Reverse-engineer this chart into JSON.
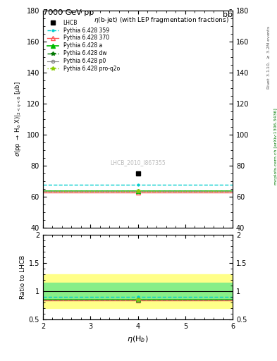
{
  "title_main": "7000 GeV pp",
  "title_right": "b$\\bar{\\text{b}}$",
  "plot_title": "$\\eta$(b-jet) (with LEP fragmentation fractions)",
  "ylabel_main": "$\\sigma$(pp $\\to$ H$_b$ X)|$_{2<\\eta<6}$ [$\\mu$b]",
  "ylabel_ratio": "Ratio to LHCB",
  "xlabel": "$\\eta$(H$_b$)",
  "right_label_top": "Rivet 3.1.10, $\\geq$ 3.2M events",
  "right_label_bot": "mcplots.cern.ch [arXiv:1306.3436]",
  "watermark": "LHCB_2010_I867355",
  "xlim": [
    2,
    6
  ],
  "ylim_main": [
    40,
    180
  ],
  "ylim_ratio": [
    0.5,
    2.0
  ],
  "yticks_main": [
    40,
    60,
    80,
    100,
    120,
    140,
    160,
    180
  ],
  "lhcb_x": 4.0,
  "lhcb_y": 75.0,
  "lines": [
    {
      "label": "Pythia 6.428 359",
      "y": 67.5,
      "ratio_y": 0.9,
      "color": "#00CCCC",
      "ls": "--",
      "lw": 1.0,
      "marker": ".",
      "ms": 4
    },
    {
      "label": "Pythia 6.428 370",
      "y": 62.5,
      "ratio_y": 0.833,
      "color": "#FF5555",
      "ls": "-",
      "lw": 1.0,
      "marker": "^",
      "ms": 4,
      "mfc": "none"
    },
    {
      "label": "Pythia 6.428 a",
      "y": 63.5,
      "ratio_y": 0.847,
      "color": "#00BB00",
      "ls": "-",
      "lw": 1.2,
      "marker": "^",
      "ms": 4
    },
    {
      "label": "Pythia 6.428 dw",
      "y": 63.5,
      "ratio_y": 0.847,
      "color": "#007700",
      "ls": "--",
      "lw": 1.0,
      "marker": "*",
      "ms": 4
    },
    {
      "label": "Pythia 6.428 p0",
      "y": 63.5,
      "ratio_y": 0.847,
      "color": "#888888",
      "ls": "-",
      "lw": 0.8,
      "marker": "o",
      "ms": 3,
      "mfc": "none"
    },
    {
      "label": "Pythia 6.428 pro-q2o",
      "y": 63.5,
      "ratio_y": 0.847,
      "color": "#88CC00",
      "ls": ":",
      "lw": 1.0,
      "marker": "*",
      "ms": 4
    }
  ],
  "band_yellow_lo": 0.7,
  "band_yellow_hi": 1.3,
  "band_green_lo": 0.85,
  "band_green_hi": 1.15,
  "bg_color": "#ffffff"
}
